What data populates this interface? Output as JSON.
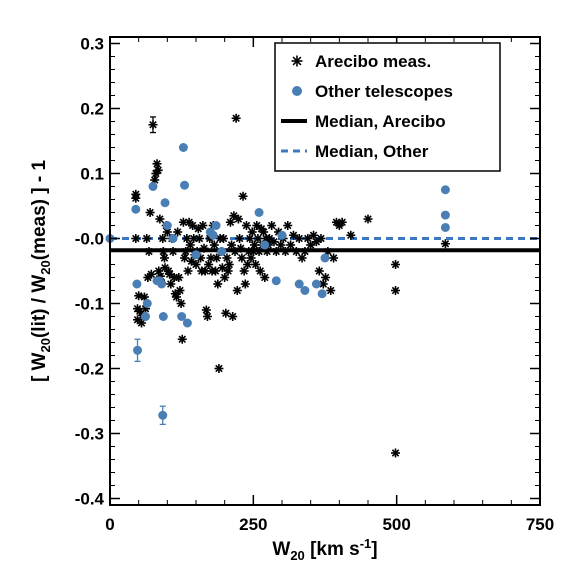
{
  "chart_data": {
    "type": "scatter",
    "xlabel_main": "W",
    "xlabel_sub": "20",
    "xlabel_units": " [km s",
    "xlabel_sup": "-1",
    "xlabel_close": "]",
    "ylabel_parts": {
      "p1": "[ W",
      "s1": "20",
      "p2": "(lit) / W",
      "s2": "20",
      "p3": "(meas) ] - 1"
    },
    "xlim": [
      0,
      750
    ],
    "ylim": [
      -0.41,
      0.31
    ],
    "xticks": [
      0,
      250,
      500,
      750
    ],
    "yticks": [
      -0.4,
      -0.3,
      -0.2,
      -0.1,
      0.0,
      0.1,
      0.2,
      0.3
    ],
    "ytick_labels": [
      "-0.4",
      "-0.3",
      "-0.2",
      "-0.1",
      "-0.0",
      "0.1",
      "0.2",
      "0.3"
    ],
    "legend": {
      "position": "top-right",
      "entries": [
        {
          "label": "Arecibo meas.",
          "marker": "asterisk",
          "color": "#000000"
        },
        {
          "label": "Other telescopes",
          "marker": "circle",
          "color": "#4a7fb5"
        },
        {
          "label": "Median, Arecibo",
          "line": "solid",
          "color": "#000000"
        },
        {
          "label": "Median, Other",
          "line": "dashed",
          "color": "#3a78c0"
        }
      ]
    },
    "median_arecibo": -0.018,
    "median_other": 0.0,
    "series": [
      {
        "name": "Arecibo meas.",
        "color": "#000000",
        "marker": "asterisk",
        "points": [
          [
            45,
            0.068
          ],
          [
            45,
            0.062
          ],
          [
            45,
            0.0
          ],
          [
            48,
            -0.108
          ],
          [
            48,
            -0.125
          ],
          [
            50,
            -0.088
          ],
          [
            52,
            -0.112
          ],
          [
            55,
            -0.13
          ],
          [
            57,
            -0.118
          ],
          [
            60,
            -0.09
          ],
          [
            62,
            -0.108
          ],
          [
            64,
            0.0
          ],
          [
            66,
            -0.06
          ],
          [
            68,
            -0.02
          ],
          [
            70,
            0.04
          ],
          [
            72,
            -0.055
          ],
          [
            75,
            0.175
          ],
          [
            78,
            0.09
          ],
          [
            80,
            0.1
          ],
          [
            82,
            0.115
          ],
          [
            84,
            0.105
          ],
          [
            85,
            -0.05
          ],
          [
            87,
            0.03
          ],
          [
            88,
            -0.058
          ],
          [
            90,
            -0.068
          ],
          [
            92,
            0.0
          ],
          [
            93,
            -0.02
          ],
          [
            95,
            -0.03
          ],
          [
            96,
            -0.045
          ],
          [
            98,
            0.02
          ],
          [
            100,
            0.01
          ],
          [
            102,
            -0.05
          ],
          [
            104,
            -0.055
          ],
          [
            106,
            -0.07
          ],
          [
            108,
            0.0
          ],
          [
            110,
            -0.02
          ],
          [
            112,
            -0.06
          ],
          [
            114,
            -0.085
          ],
          [
            116,
            -0.09
          ],
          [
            118,
            0.01
          ],
          [
            120,
            -0.06
          ],
          [
            122,
            -0.08
          ],
          [
            124,
            -0.1
          ],
          [
            126,
            -0.155
          ],
          [
            128,
            0.025
          ],
          [
            130,
            -0.03
          ],
          [
            132,
            -0.02
          ],
          [
            134,
            0.0
          ],
          [
            136,
            -0.05
          ],
          [
            138,
            0.025
          ],
          [
            140,
            -0.01
          ],
          [
            142,
            -0.035
          ],
          [
            144,
            0.02
          ],
          [
            146,
            0.0
          ],
          [
            148,
            -0.025
          ],
          [
            150,
            -0.04
          ],
          [
            152,
            -0.02
          ],
          [
            154,
            0.015
          ],
          [
            156,
            0.0
          ],
          [
            158,
            -0.03
          ],
          [
            160,
            -0.05
          ],
          [
            162,
            0.02
          ],
          [
            164,
            -0.015
          ],
          [
            166,
            -0.05
          ],
          [
            168,
            -0.11
          ],
          [
            170,
            -0.12
          ],
          [
            172,
            -0.04
          ],
          [
            174,
            0.0
          ],
          [
            176,
            -0.03
          ],
          [
            178,
            -0.05
          ],
          [
            180,
            0.02
          ],
          [
            182,
            -0.01
          ],
          [
            184,
            -0.05
          ],
          [
            186,
            -0.03
          ],
          [
            188,
            -0.07
          ],
          [
            190,
            -0.2
          ],
          [
            192,
            0.0
          ],
          [
            194,
            -0.02
          ],
          [
            196,
            -0.045
          ],
          [
            198,
            0.0
          ],
          [
            200,
            -0.06
          ],
          [
            202,
            -0.115
          ],
          [
            204,
            -0.03
          ],
          [
            206,
            -0.05
          ],
          [
            208,
            -0.04
          ],
          [
            210,
            0.025
          ],
          [
            212,
            -0.01
          ],
          [
            214,
            -0.12
          ],
          [
            216,
            0.035
          ],
          [
            218,
            -0.02
          ],
          [
            220,
            0.185
          ],
          [
            222,
            -0.08
          ],
          [
            224,
            0.03
          ],
          [
            226,
            0.0
          ],
          [
            228,
            -0.015
          ],
          [
            230,
            -0.03
          ],
          [
            232,
            0.065
          ],
          [
            234,
            -0.05
          ],
          [
            236,
            -0.07
          ],
          [
            238,
            0.02
          ],
          [
            240,
            -0.04
          ],
          [
            242,
            -0.02
          ],
          [
            244,
            0.0
          ],
          [
            246,
            -0.03
          ],
          [
            248,
            0.01
          ],
          [
            250,
            -0.02
          ],
          [
            252,
            -0.01
          ],
          [
            254,
            -0.04
          ],
          [
            256,
            0.02
          ],
          [
            258,
            0.0
          ],
          [
            260,
            -0.02
          ],
          [
            262,
            -0.05
          ],
          [
            264,
            0.015
          ],
          [
            266,
            -0.01
          ],
          [
            268,
            0.01
          ],
          [
            270,
            -0.06
          ],
          [
            272,
            0.0
          ],
          [
            274,
            -0.02
          ],
          [
            276,
            -0.01
          ],
          [
            278,
            0.0
          ],
          [
            282,
            0.02
          ],
          [
            286,
            -0.005
          ],
          [
            290,
            -0.02
          ],
          [
            294,
            0.01
          ],
          [
            298,
            -0.01
          ],
          [
            302,
            0.0
          ],
          [
            306,
            -0.02
          ],
          [
            310,
            0.02
          ],
          [
            315,
            -0.01
          ],
          [
            320,
            0.005
          ],
          [
            325,
            -0.02
          ],
          [
            330,
            0.0
          ],
          [
            335,
            -0.03
          ],
          [
            340,
            -0.02
          ],
          [
            345,
            0.0
          ],
          [
            350,
            -0.01
          ],
          [
            355,
            0.005
          ],
          [
            360,
            -0.005
          ],
          [
            365,
            -0.05
          ],
          [
            368,
            0.0
          ],
          [
            372,
            -0.07
          ],
          [
            376,
            -0.06
          ],
          [
            380,
            -0.02
          ],
          [
            385,
            -0.08
          ],
          [
            390,
            -0.03
          ],
          [
            395,
            0.025
          ],
          [
            400,
            0.02
          ],
          [
            405,
            0.025
          ],
          [
            420,
            0.005
          ],
          [
            450,
            0.03
          ],
          [
            498,
            -0.04
          ],
          [
            498,
            -0.08
          ],
          [
            498,
            -0.33
          ],
          [
            585,
            -0.008
          ]
        ]
      },
      {
        "name": "Other telescopes",
        "color": "#4a7fb5",
        "marker": "circle",
        "points": [
          [
            0,
            0.0
          ],
          [
            45,
            0.045
          ],
          [
            47,
            -0.07
          ],
          [
            48,
            -0.172
          ],
          [
            62,
            -0.12
          ],
          [
            65,
            -0.1
          ],
          [
            75,
            0.08
          ],
          [
            82,
            -0.065
          ],
          [
            86,
            -0.065
          ],
          [
            90,
            -0.07
          ],
          [
            92,
            -0.272
          ],
          [
            93,
            -0.12
          ],
          [
            96,
            0.055
          ],
          [
            100,
            0.02
          ],
          [
            110,
            0.0
          ],
          [
            125,
            -0.12
          ],
          [
            128,
            0.14
          ],
          [
            130,
            0.082
          ],
          [
            135,
            -0.13
          ],
          [
            150,
            -0.025
          ],
          [
            175,
            0.01
          ],
          [
            180,
            0.005
          ],
          [
            185,
            0.02
          ],
          [
            195,
            -0.02
          ],
          [
            260,
            0.04
          ],
          [
            270,
            -0.01
          ],
          [
            290,
            -0.065
          ],
          [
            300,
            0.005
          ],
          [
            330,
            -0.07
          ],
          [
            340,
            -0.08
          ],
          [
            360,
            -0.07
          ],
          [
            370,
            -0.085
          ],
          [
            375,
            -0.03
          ],
          [
            585,
            0.075
          ],
          [
            585,
            0.036
          ],
          [
            585,
            0.017
          ]
        ]
      }
    ],
    "errorbars": [
      {
        "x": 75,
        "y": 0.175,
        "err": 0.012,
        "color": "#000000"
      },
      {
        "x": 48,
        "y": -0.172,
        "err": 0.017,
        "color": "#4a7fb5"
      },
      {
        "x": 92,
        "y": -0.272,
        "err": 0.014,
        "color": "#4a7fb5"
      }
    ]
  }
}
